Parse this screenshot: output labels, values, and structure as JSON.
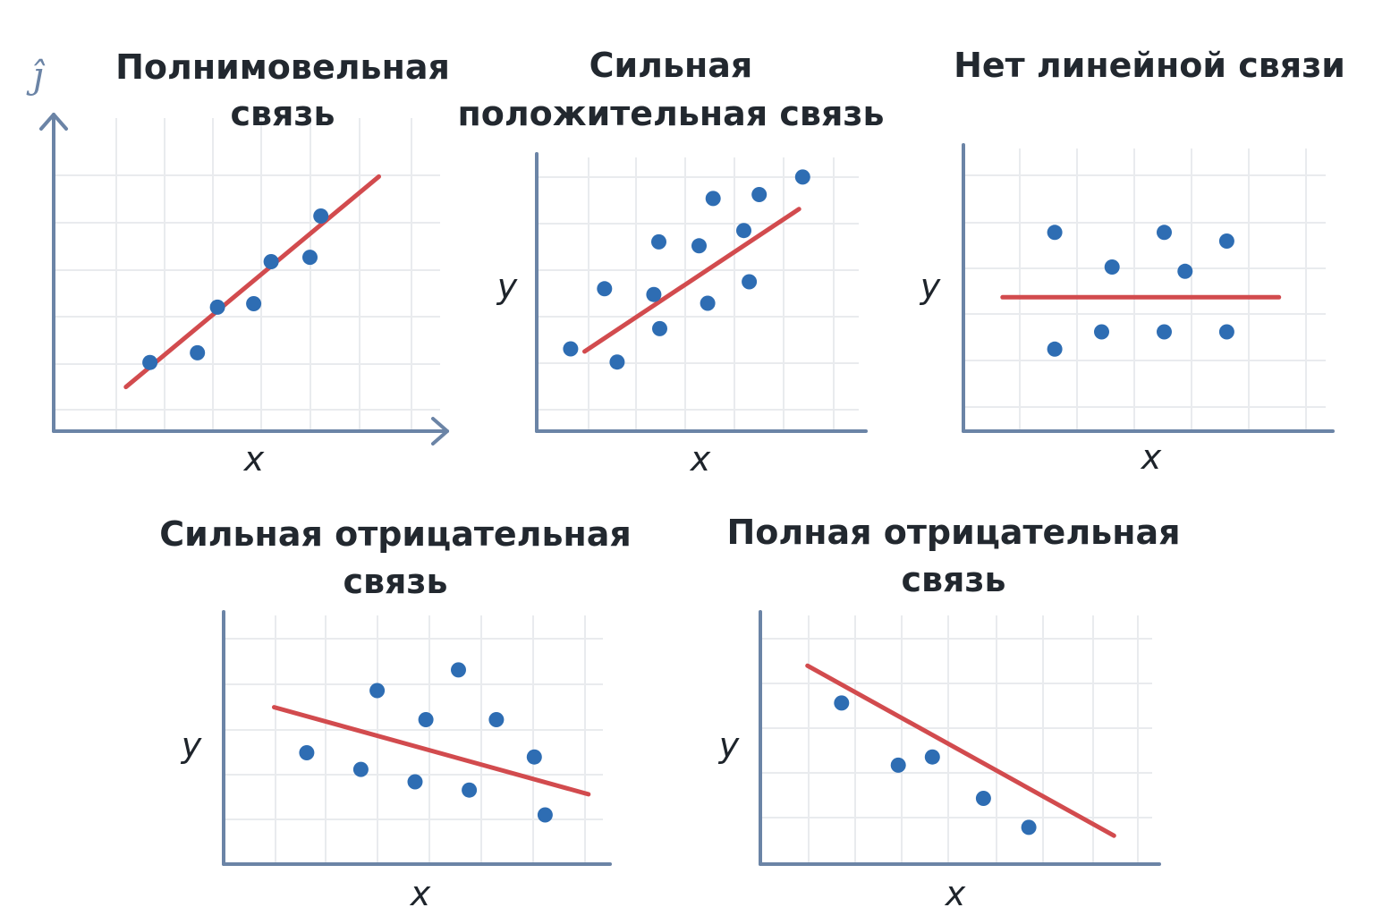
{
  "colors": {
    "axis": "#6b84a6",
    "grid": "#e9ebee",
    "trend": "#d24b4e",
    "point": "#2e6db3",
    "text": "#22282f"
  },
  "corner_mark": "ĵ",
  "chart_data": [
    {
      "type": "scatter",
      "title_lines": [
        "Полнимовельная",
        "связь"
      ],
      "xlabel": "x",
      "ylabel": "",
      "xlim": [
        0,
        8
      ],
      "ylim": [
        0,
        6
      ],
      "grid": true,
      "points": [
        {
          "x": 1.55,
          "y": 1.16
        },
        {
          "x": 2.64,
          "y": 1.38
        },
        {
          "x": 3.1,
          "y": 2.42
        },
        {
          "x": 3.93,
          "y": 2.5
        },
        {
          "x": 4.33,
          "y": 3.46
        },
        {
          "x": 5.22,
          "y": 3.56
        },
        {
          "x": 5.47,
          "y": 4.5
        }
      ],
      "trend": {
        "x": [
          1.0,
          6.8
        ],
        "y": [
          0.6,
          5.4
        ]
      }
    },
    {
      "type": "scatter",
      "title_lines": [
        "Сильная",
        "положительная связь"
      ],
      "xlabel": "x",
      "ylabel": "y",
      "xlim": [
        0,
        7
      ],
      "ylim": [
        0,
        6
      ],
      "grid": true,
      "points": [
        {
          "x": 0.63,
          "y": 1.47
        },
        {
          "x": 1.38,
          "y": 2.84
        },
        {
          "x": 1.66,
          "y": 1.17
        },
        {
          "x": 2.47,
          "y": 2.71
        },
        {
          "x": 2.58,
          "y": 3.91
        },
        {
          "x": 2.6,
          "y": 1.93
        },
        {
          "x": 3.47,
          "y": 3.82
        },
        {
          "x": 3.66,
          "y": 2.51
        },
        {
          "x": 3.78,
          "y": 4.9
        },
        {
          "x": 4.46,
          "y": 4.17
        },
        {
          "x": 4.58,
          "y": 3.0
        },
        {
          "x": 4.8,
          "y": 4.99
        },
        {
          "x": 5.76,
          "y": 5.39
        }
      ],
      "trend": {
        "x": [
          0.94,
          5.68
        ],
        "y": [
          1.41,
          4.66
        ]
      }
    },
    {
      "type": "scatter",
      "title_lines": [
        "Нет линейной связи"
      ],
      "xlabel": "x",
      "ylabel": "y",
      "xlim": [
        0,
        7
      ],
      "ylim": [
        0,
        6
      ],
      "grid": true,
      "points": [
        {
          "x": 1.7,
          "y": 4.1
        },
        {
          "x": 2.8,
          "y": 3.3
        },
        {
          "x": 3.8,
          "y": 4.1
        },
        {
          "x": 4.2,
          "y": 3.2
        },
        {
          "x": 5.0,
          "y": 3.9
        },
        {
          "x": 1.7,
          "y": 1.4
        },
        {
          "x": 2.6,
          "y": 1.8
        },
        {
          "x": 3.8,
          "y": 1.8
        },
        {
          "x": 5.0,
          "y": 1.8
        }
      ],
      "trend": {
        "x": [
          0.7,
          6.0
        ],
        "y": [
          2.6,
          2.6
        ]
      }
    },
    {
      "type": "scatter",
      "title_lines": [
        "Сильная отрицательная",
        "связь"
      ],
      "xlabel": "x",
      "ylabel": "y",
      "xlim": [
        0,
        7
      ],
      "ylim": [
        0,
        6
      ],
      "grid": true,
      "points": [
        {
          "x": 1.5,
          "y": 2.6
        },
        {
          "x": 2.5,
          "y": 2.2
        },
        {
          "x": 2.8,
          "y": 4.1
        },
        {
          "x": 3.5,
          "y": 1.9
        },
        {
          "x": 3.7,
          "y": 3.4
        },
        {
          "x": 4.3,
          "y": 4.6
        },
        {
          "x": 4.5,
          "y": 1.7
        },
        {
          "x": 5.0,
          "y": 3.4
        },
        {
          "x": 5.7,
          "y": 2.5
        },
        {
          "x": 5.9,
          "y": 1.1
        }
      ],
      "trend": {
        "x": [
          0.9,
          6.7
        ],
        "y": [
          3.7,
          1.6
        ]
      }
    },
    {
      "type": "scatter",
      "title_lines": [
        "Полная отрицательная",
        "связь"
      ],
      "xlabel": "x",
      "ylabel": "y",
      "xlim": [
        0,
        7
      ],
      "ylim": [
        0,
        6
      ],
      "grid": true,
      "points": [
        {
          "x": 1.4,
          "y": 3.8
        },
        {
          "x": 2.4,
          "y": 2.3
        },
        {
          "x": 3.0,
          "y": 2.5
        },
        {
          "x": 3.9,
          "y": 1.5
        },
        {
          "x": 4.7,
          "y": 0.8
        }
      ],
      "trend": {
        "x": [
          0.8,
          6.2
        ],
        "y": [
          4.7,
          0.6
        ]
      }
    }
  ]
}
